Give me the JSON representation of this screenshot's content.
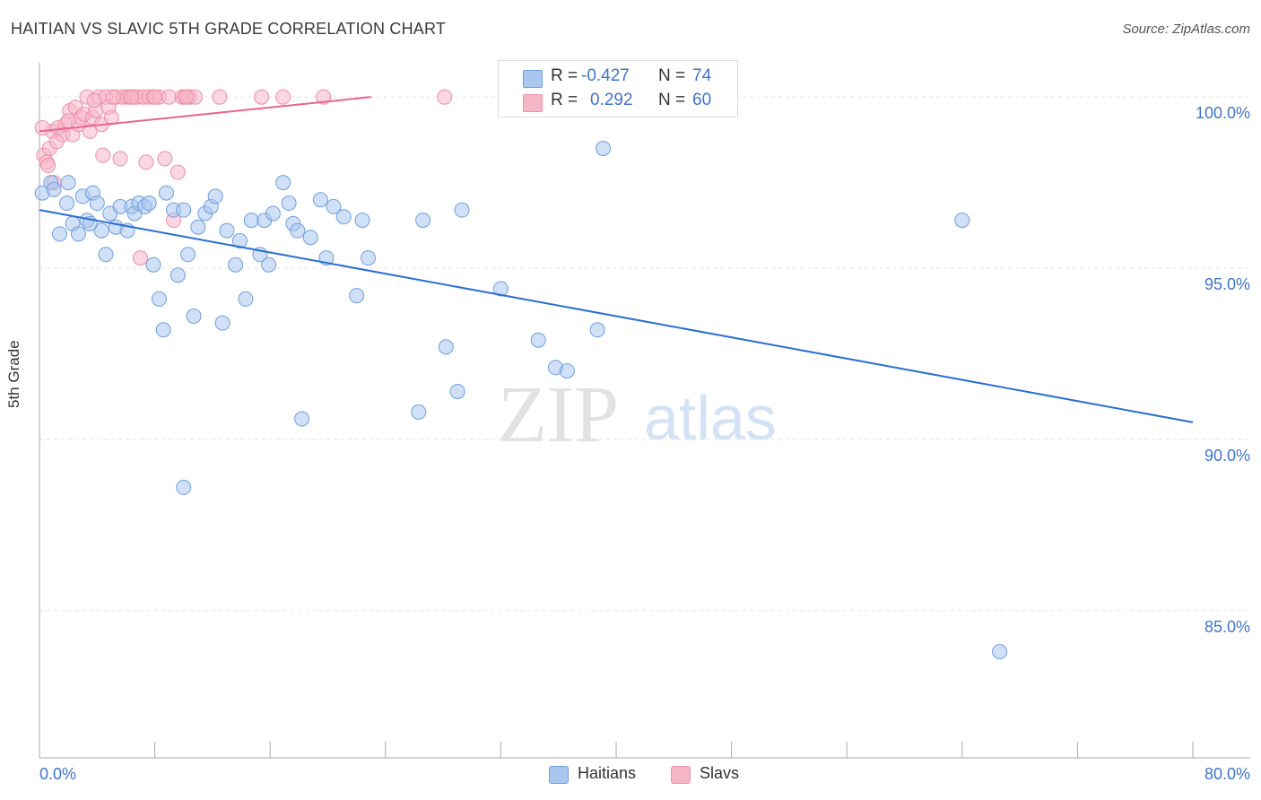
{
  "title": "HAITIAN VS SLAVIC 5TH GRADE CORRELATION CHART",
  "source": "Source: ZipAtlas.com",
  "watermark": {
    "zip": "ZIP",
    "atlas": "atlas"
  },
  "colors": {
    "blue_fill": "#a9c6ef",
    "blue_stroke": "#6f9ee0",
    "blue_line": "#2a6fd1",
    "pink_fill": "#f5b7c8",
    "pink_stroke": "#ee8fab",
    "pink_line": "#e8658d",
    "axis_text": "#3f74c9",
    "grid": "#e3e3e3"
  },
  "legend": {
    "rows": [
      {
        "r_label": "R =",
        "r_value": "-0.427",
        "n_label": "N =",
        "n_value": "74",
        "series": "Haitians"
      },
      {
        "r_label": "R =",
        "r_value": "0.292",
        "n_label": "N =",
        "n_value": "60",
        "series": "Slavs"
      }
    ]
  },
  "bottom_legend": [
    "Haitians",
    "Slavs"
  ],
  "chart_data": {
    "type": "scatter",
    "title": "HAITIAN VS SLAVIC 5TH GRADE CORRELATION CHART",
    "xlabel": "",
    "ylabel": "5th Grade",
    "xlim": [
      0,
      80
    ],
    "ylim": [
      80.7,
      101.0
    ],
    "x_tick_labels": [
      {
        "value": 0,
        "label": "0.0%"
      },
      {
        "value": 80,
        "label": "80.0%"
      }
    ],
    "y_tick_labels": [
      {
        "value": 100,
        "label": "100.0%"
      },
      {
        "value": 95,
        "label": "95.0%"
      },
      {
        "value": 90,
        "label": "90.0%"
      },
      {
        "value": 85,
        "label": "85.0%"
      }
    ],
    "series": [
      {
        "name": "Haitians",
        "r": -0.427,
        "n": 74,
        "trend": {
          "x": [
            0,
            80
          ],
          "y": [
            96.7,
            90.5
          ]
        },
        "points": [
          [
            0.2,
            97.2
          ],
          [
            0.8,
            97.5
          ],
          [
            1.0,
            97.3
          ],
          [
            1.4,
            96.0
          ],
          [
            1.9,
            96.9
          ],
          [
            2.3,
            96.3
          ],
          [
            2.7,
            96.0
          ],
          [
            3.0,
            97.1
          ],
          [
            3.3,
            96.4
          ],
          [
            3.7,
            97.2
          ],
          [
            4.0,
            96.9
          ],
          [
            4.3,
            96.1
          ],
          [
            4.6,
            95.4
          ],
          [
            4.9,
            96.6
          ],
          [
            5.3,
            96.2
          ],
          [
            5.6,
            96.8
          ],
          [
            6.1,
            96.1
          ],
          [
            6.4,
            96.8
          ],
          [
            6.6,
            96.6
          ],
          [
            6.9,
            96.9
          ],
          [
            7.3,
            96.8
          ],
          [
            7.6,
            96.9
          ],
          [
            7.9,
            95.1
          ],
          [
            8.3,
            94.1
          ],
          [
            8.6,
            93.2
          ],
          [
            8.8,
            97.2
          ],
          [
            9.3,
            96.7
          ],
          [
            9.6,
            94.8
          ],
          [
            10.0,
            96.7
          ],
          [
            10.3,
            95.4
          ],
          [
            10.7,
            93.6
          ],
          [
            11.0,
            96.2
          ],
          [
            11.5,
            96.6
          ],
          [
            11.9,
            96.8
          ],
          [
            12.2,
            97.1
          ],
          [
            12.7,
            93.4
          ],
          [
            13.0,
            96.1
          ],
          [
            13.6,
            95.1
          ],
          [
            13.9,
            95.8
          ],
          [
            14.3,
            94.1
          ],
          [
            14.7,
            96.4
          ],
          [
            15.3,
            95.4
          ],
          [
            15.6,
            96.4
          ],
          [
            15.9,
            95.1
          ],
          [
            16.2,
            96.6
          ],
          [
            16.9,
            97.5
          ],
          [
            17.3,
            96.9
          ],
          [
            17.6,
            96.3
          ],
          [
            17.9,
            96.1
          ],
          [
            18.2,
            90.6
          ],
          [
            18.8,
            95.9
          ],
          [
            19.5,
            97.0
          ],
          [
            19.9,
            95.3
          ],
          [
            20.4,
            96.8
          ],
          [
            21.1,
            96.5
          ],
          [
            22.0,
            94.2
          ],
          [
            22.4,
            96.4
          ],
          [
            22.8,
            95.3
          ],
          [
            26.3,
            90.8
          ],
          [
            26.6,
            96.4
          ],
          [
            28.2,
            92.7
          ],
          [
            29.0,
            91.4
          ],
          [
            29.3,
            96.7
          ],
          [
            32.0,
            94.4
          ],
          [
            34.6,
            92.9
          ],
          [
            35.8,
            92.1
          ],
          [
            36.6,
            92.0
          ],
          [
            38.7,
            93.2
          ],
          [
            39.1,
            98.5
          ],
          [
            64.0,
            96.4
          ],
          [
            66.6,
            83.8
          ],
          [
            10.0,
            88.6
          ],
          [
            2.0,
            97.5
          ],
          [
            3.5,
            96.3
          ]
        ]
      },
      {
        "name": "Slavs",
        "r": 0.292,
        "n": 60,
        "trend": {
          "x": [
            0,
            23
          ],
          "y": [
            99.0,
            100.0
          ]
        },
        "points": [
          [
            0.3,
            98.3
          ],
          [
            0.5,
            98.1
          ],
          [
            0.7,
            98.5
          ],
          [
            0.9,
            99.0
          ],
          [
            1.0,
            97.5
          ],
          [
            1.3,
            99.1
          ],
          [
            1.6,
            98.9
          ],
          [
            1.8,
            99.2
          ],
          [
            2.1,
            99.6
          ],
          [
            2.3,
            98.9
          ],
          [
            2.5,
            99.7
          ],
          [
            2.7,
            99.2
          ],
          [
            2.9,
            99.4
          ],
          [
            3.1,
            99.5
          ],
          [
            3.3,
            100.0
          ],
          [
            3.5,
            99.0
          ],
          [
            3.7,
            99.4
          ],
          [
            3.9,
            99.6
          ],
          [
            4.1,
            100.0
          ],
          [
            4.3,
            99.2
          ],
          [
            4.4,
            98.3
          ],
          [
            4.6,
            100.0
          ],
          [
            4.8,
            99.7
          ],
          [
            5.0,
            99.4
          ],
          [
            5.3,
            100.0
          ],
          [
            5.6,
            98.2
          ],
          [
            5.8,
            100.0
          ],
          [
            6.1,
            100.0
          ],
          [
            6.3,
            100.0
          ],
          [
            6.6,
            100.0
          ],
          [
            6.8,
            100.0
          ],
          [
            7.0,
            95.3
          ],
          [
            7.2,
            100.0
          ],
          [
            7.4,
            98.1
          ],
          [
            7.6,
            100.0
          ],
          [
            7.9,
            100.0
          ],
          [
            8.3,
            100.0
          ],
          [
            8.7,
            98.2
          ],
          [
            9.0,
            100.0
          ],
          [
            9.3,
            96.4
          ],
          [
            9.6,
            97.8
          ],
          [
            9.9,
            100.0
          ],
          [
            10.1,
            100.0
          ],
          [
            10.4,
            100.0
          ],
          [
            10.8,
            100.0
          ],
          [
            12.5,
            100.0
          ],
          [
            15.4,
            100.0
          ],
          [
            16.9,
            100.0
          ],
          [
            19.7,
            100.0
          ],
          [
            28.1,
            100.0
          ],
          [
            32.4,
            100.0
          ],
          [
            0.2,
            99.1
          ],
          [
            1.2,
            98.7
          ],
          [
            2.0,
            99.3
          ],
          [
            3.8,
            99.9
          ],
          [
            5.1,
            100.0
          ],
          [
            6.4,
            100.0
          ],
          [
            8.0,
            100.0
          ],
          [
            10.2,
            100.0
          ],
          [
            0.6,
            98.0
          ]
        ]
      }
    ]
  }
}
